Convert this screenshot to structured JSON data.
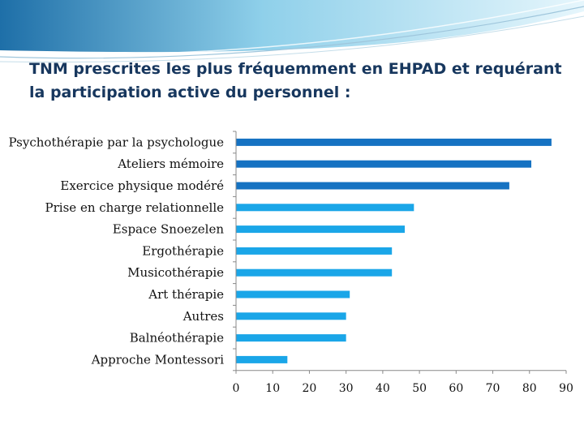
{
  "slide": {
    "title": "TNM prescrites les plus fréquemment en EHPAD et requérant la participation active du personnel :"
  },
  "colors": {
    "bar_highlight": "#1572c2",
    "bar_normal": "#1aa6e8",
    "banner_dark": "#1e6fa8",
    "banner_light": "#bfe6f4",
    "axis": "#888888",
    "title": "#17375e"
  },
  "chart_data": {
    "type": "bar",
    "orientation": "horizontal",
    "title": "TNM prescrites les plus fréquemment en EHPAD et requérant la participation active du personnel :",
    "categories": [
      "Psychothérapie par la psychologue",
      "Ateliers mémoire",
      "Exercice physique modéré",
      "Prise en charge relationnelle",
      "Espace Snoezelen",
      "Ergothérapie",
      "Musicothérapie",
      "Art thérapie",
      "Autres",
      "Balnéothérapie",
      "Approche Montessori"
    ],
    "values": [
      86,
      80.5,
      74.5,
      48.5,
      46,
      42.5,
      42.5,
      31,
      30,
      30,
      14
    ],
    "highlighted": [
      true,
      true,
      true,
      false,
      false,
      false,
      false,
      false,
      false,
      false,
      false
    ],
    "xlim": [
      0,
      90
    ],
    "xticks": [
      0,
      10,
      20,
      30,
      40,
      50,
      60,
      70,
      80,
      90
    ],
    "xlabel": "",
    "ylabel": "",
    "grid": false,
    "legend": "none"
  }
}
